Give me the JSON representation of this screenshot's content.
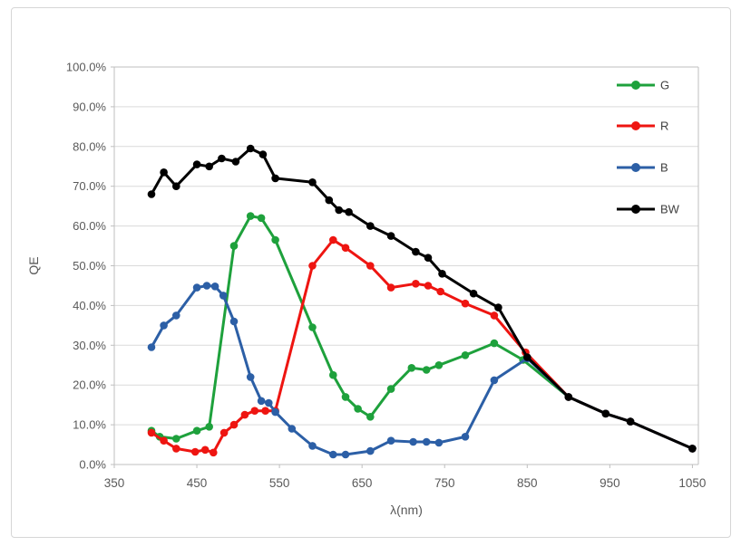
{
  "chart_data": {
    "type": "line",
    "title": "",
    "xlabel": "λ(nm)",
    "ylabel": "QE",
    "xlim": [
      350,
      1058
    ],
    "ylim": [
      0,
      100
    ],
    "grid": "horizontal-only",
    "x_ticks": [
      350,
      450,
      550,
      650,
      750,
      850,
      950,
      1050
    ],
    "y_tick_labels": [
      "0.0%",
      "10.0%",
      "20.0%",
      "30.0%",
      "40.0%",
      "50.0%",
      "60.0%",
      "70.0%",
      "80.0%",
      "90.0%",
      "100.0%"
    ],
    "y_tick_values": [
      0,
      10,
      20,
      30,
      40,
      50,
      60,
      70,
      80,
      90,
      100
    ],
    "legend_position": "inside-top-right",
    "legend_order": [
      "G",
      "R",
      "B",
      "BW"
    ],
    "series": [
      {
        "name": "G",
        "color": "#1ea13c",
        "points": [
          [
            395,
            8.5
          ],
          [
            405,
            7
          ],
          [
            425,
            6.5
          ],
          [
            450,
            8.5
          ],
          [
            465,
            9.5
          ],
          [
            495,
            55
          ],
          [
            515,
            62.5
          ],
          [
            528,
            62
          ],
          [
            545,
            56.5
          ],
          [
            590,
            34.5
          ],
          [
            615,
            22.5
          ],
          [
            630,
            17
          ],
          [
            645,
            14
          ],
          [
            660,
            12
          ],
          [
            685,
            19
          ],
          [
            710,
            24.3
          ],
          [
            728,
            23.8
          ],
          [
            743,
            25
          ],
          [
            775,
            27.5
          ],
          [
            810,
            30.5
          ],
          [
            845,
            26.3
          ],
          [
            900,
            17
          ],
          [
            945,
            12.8
          ],
          [
            975,
            10.8
          ],
          [
            1050,
            4
          ]
        ]
      },
      {
        "name": "R",
        "color": "#ee1511",
        "points": [
          [
            395,
            8
          ],
          [
            410,
            6
          ],
          [
            425,
            4
          ],
          [
            448,
            3.2
          ],
          [
            460,
            3.7
          ],
          [
            470,
            3
          ],
          [
            483,
            8
          ],
          [
            495,
            10
          ],
          [
            508,
            12.5
          ],
          [
            520,
            13.5
          ],
          [
            533,
            13.5
          ],
          [
            545,
            13.5
          ],
          [
            590,
            50
          ],
          [
            615,
            56.5
          ],
          [
            630,
            54.5
          ],
          [
            660,
            50
          ],
          [
            685,
            44.5
          ],
          [
            715,
            45.5
          ],
          [
            730,
            45
          ],
          [
            745,
            43.5
          ],
          [
            775,
            40.5
          ],
          [
            810,
            37.5
          ],
          [
            848,
            28.2
          ],
          [
            900,
            17
          ],
          [
            945,
            12.8
          ],
          [
            975,
            10.8
          ],
          [
            1050,
            4
          ]
        ]
      },
      {
        "name": "B",
        "color": "#2c5fa6",
        "points": [
          [
            395,
            29.5
          ],
          [
            410,
            35
          ],
          [
            425,
            37.5
          ],
          [
            450,
            44.5
          ],
          [
            462,
            45
          ],
          [
            472,
            44.8
          ],
          [
            482,
            42.5
          ],
          [
            495,
            36
          ],
          [
            515,
            22
          ],
          [
            528,
            16
          ],
          [
            537,
            15.5
          ],
          [
            545,
            13.2
          ],
          [
            565,
            9
          ],
          [
            590,
            4.7
          ],
          [
            615,
            2.5
          ],
          [
            630,
            2.5
          ],
          [
            660,
            3.4
          ],
          [
            685,
            6
          ],
          [
            712,
            5.7
          ],
          [
            728,
            5.7
          ],
          [
            743,
            5.5
          ],
          [
            775,
            7
          ],
          [
            810,
            21.2
          ],
          [
            850,
            26.7
          ],
          [
            900,
            17
          ],
          [
            945,
            12.8
          ],
          [
            975,
            10.8
          ],
          [
            1050,
            4
          ]
        ]
      },
      {
        "name": "BW",
        "color": "#000000",
        "points": [
          [
            395,
            68
          ],
          [
            410,
            73.5
          ],
          [
            425,
            70
          ],
          [
            450,
            75.5
          ],
          [
            465,
            75
          ],
          [
            480,
            77
          ],
          [
            497,
            76.2
          ],
          [
            515,
            79.5
          ],
          [
            530,
            78
          ],
          [
            545,
            72
          ],
          [
            590,
            71
          ],
          [
            610,
            66.5
          ],
          [
            622,
            64
          ],
          [
            634,
            63.5
          ],
          [
            660,
            60
          ],
          [
            685,
            57.5
          ],
          [
            715,
            53.5
          ],
          [
            730,
            52
          ],
          [
            747,
            48
          ],
          [
            785,
            43
          ],
          [
            815,
            39.5
          ],
          [
            850,
            27
          ],
          [
            900,
            17
          ],
          [
            945,
            12.8
          ],
          [
            975,
            10.8
          ],
          [
            1050,
            4
          ]
        ]
      }
    ],
    "style": {
      "gridline_color": "#dadada",
      "axis_line_color": "#bfbfbf",
      "tick_label_color": "#595959",
      "axis_title_color": "#595959",
      "legend_text_color": "#404040",
      "plot_background": "#ffffff"
    }
  }
}
